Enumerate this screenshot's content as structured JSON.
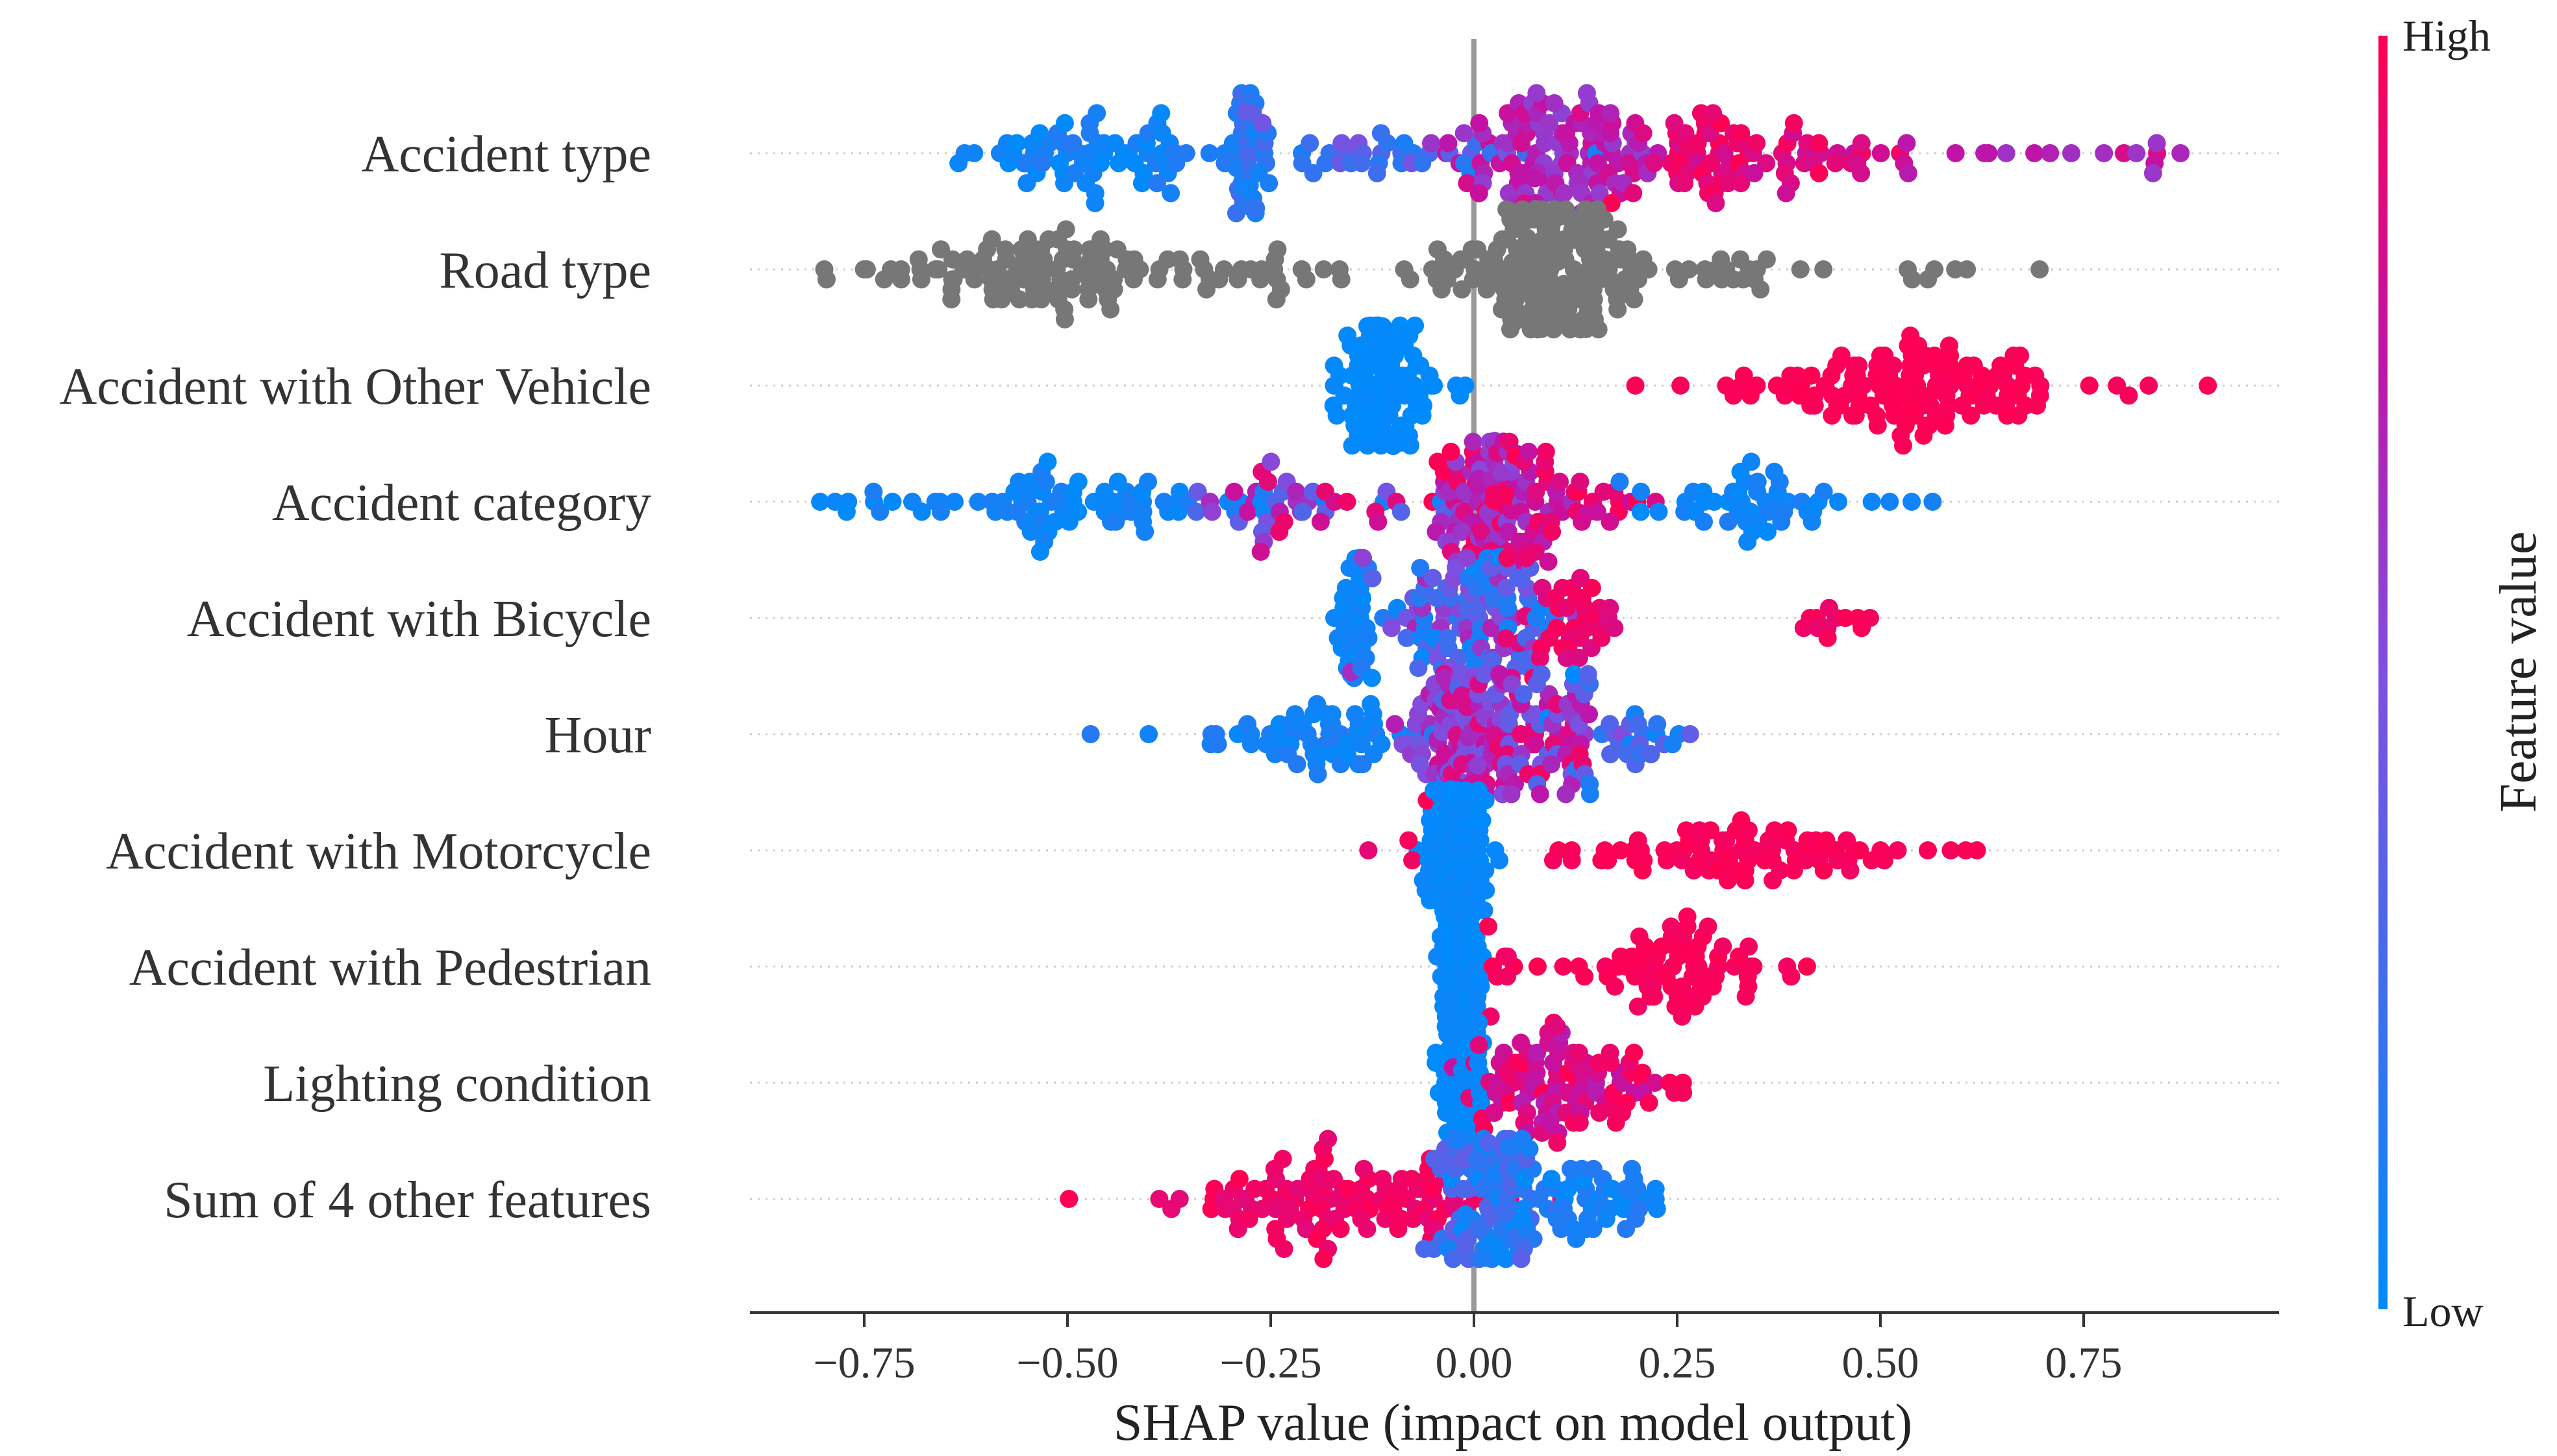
{
  "chart_data": {
    "type": "beeswarm",
    "xlabel": "SHAP value (impact on model output)",
    "xlim": [
      -0.9,
      1.0
    ],
    "xticks": [
      -0.75,
      -0.5,
      -0.25,
      0.0,
      0.25,
      0.5,
      0.75
    ],
    "xtick_labels": [
      "−0.75",
      "−0.50",
      "−0.25",
      "0.00",
      "0.25",
      "0.50",
      "0.75"
    ],
    "colorbar": {
      "title": "Feature value",
      "high_label": "High",
      "low_label": "Low",
      "low_color": "#008bfb",
      "high_color": "#ff0052"
    },
    "neutral_color": "#777777",
    "features": [
      {
        "name": "Accident type",
        "seed": 11,
        "spread": 0.55,
        "clusters": [
          {
            "x": -0.45,
            "sd": 0.08,
            "n": 70,
            "fv": [
              0.0,
              0.15
            ]
          },
          {
            "x": -0.28,
            "sd": 0.012,
            "n": 45,
            "fv": [
              0.05,
              0.3
            ]
          },
          {
            "x": -0.1,
            "sd": 0.08,
            "n": 40,
            "fv": [
              0.1,
              0.5
            ]
          },
          {
            "x": 0.1,
            "sd": 0.06,
            "n": 110,
            "fv": [
              0.55,
              0.85
            ]
          },
          {
            "x": 0.3,
            "sd": 0.05,
            "n": 60,
            "fv": [
              0.8,
              1.0
            ]
          },
          {
            "x": 0.45,
            "sd": 0.06,
            "n": 20,
            "fv": [
              0.75,
              1.0
            ]
          },
          {
            "x": 0.62,
            "sd": 0.06,
            "n": 8,
            "fv": [
              0.6,
              0.75
            ]
          },
          {
            "x": 0.82,
            "sd": 0.04,
            "n": 8,
            "fv": [
              0.6,
              0.9
            ]
          }
        ]
      },
      {
        "name": "Road type",
        "seed": 23,
        "spread": 0.55,
        "neutral": true,
        "clusters": [
          {
            "x": -0.55,
            "sd": 0.11,
            "n": 100
          },
          {
            "x": -0.25,
            "sd": 0.06,
            "n": 20
          },
          {
            "x": -0.8,
            "sd": 0.01,
            "n": 2
          },
          {
            "x": 0.0,
            "sd": 0.04,
            "n": 20
          },
          {
            "x": 0.1,
            "sd": 0.045,
            "n": 170
          },
          {
            "x": 0.3,
            "sd": 0.06,
            "n": 20
          },
          {
            "x": 0.55,
            "sd": 0.03,
            "n": 6
          },
          {
            "x": 0.69,
            "sd": 0.005,
            "n": 1
          }
        ]
      },
      {
        "name": "Accident with Other Vehicle",
        "seed": 37,
        "spread": 0.55,
        "clusters": [
          {
            "x": -0.11,
            "sd": 0.032,
            "n": 110,
            "fv": [
              0.0,
              0.03
            ]
          },
          {
            "x": 0.55,
            "sd": 0.12,
            "n": 130,
            "fv": [
              0.97,
              1.0
            ]
          },
          {
            "x": 0.9,
            "sd": 0.005,
            "n": 1,
            "fv": [
              1.0,
              1.0
            ]
          }
        ]
      },
      {
        "name": "Accident category",
        "seed": 41,
        "spread": 0.55,
        "clusters": [
          {
            "x": -0.5,
            "sd": 0.14,
            "n": 80,
            "fv": [
              0.0,
              0.12
            ]
          },
          {
            "x": -0.2,
            "sd": 0.07,
            "n": 40,
            "fv": [
              0.3,
              0.95
            ]
          },
          {
            "x": 0.02,
            "sd": 0.035,
            "n": 110,
            "fv": [
              0.5,
              1.0
            ]
          },
          {
            "x": 0.12,
            "sd": 0.05,
            "n": 40,
            "fv": [
              0.7,
              1.0
            ]
          },
          {
            "x": 0.33,
            "sd": 0.08,
            "n": 50,
            "fv": [
              0.0,
              0.12
            ]
          },
          {
            "x": -0.79,
            "sd": 0.01,
            "n": 2,
            "fv": [
              0.0,
              0.05
            ]
          }
        ]
      },
      {
        "name": "Accident with Bicycle",
        "seed": 53,
        "spread": 0.55,
        "clusters": [
          {
            "x": -0.15,
            "sd": 0.01,
            "n": 40,
            "fv": [
              0.0,
              0.1
            ]
          },
          {
            "x": -0.05,
            "sd": 0.06,
            "n": 60,
            "fv": [
              0.0,
              0.7
            ]
          },
          {
            "x": 0.02,
            "sd": 0.04,
            "n": 60,
            "fv": [
              0.0,
              0.6
            ]
          },
          {
            "x": 0.1,
            "sd": 0.04,
            "n": 40,
            "fv": [
              0.85,
              1.0
            ]
          },
          {
            "x": 0.45,
            "sd": 0.03,
            "n": 12,
            "fv": [
              0.9,
              1.0
            ]
          }
        ]
      },
      {
        "name": "Hour",
        "seed": 61,
        "spread": 0.55,
        "clusters": [
          {
            "x": -0.2,
            "sd": 0.08,
            "n": 60,
            "fv": [
              0.0,
              0.15
            ]
          },
          {
            "x": -0.02,
            "sd": 0.03,
            "n": 110,
            "fv": [
              0.4,
              0.9
            ]
          },
          {
            "x": 0.06,
            "sd": 0.05,
            "n": 80,
            "fv": [
              0.3,
              0.95
            ]
          },
          {
            "x": 0.18,
            "sd": 0.05,
            "n": 30,
            "fv": [
              0.0,
              0.4
            ]
          }
        ]
      },
      {
        "name": "Accident with Motorcycle",
        "seed": 71,
        "spread": 0.55,
        "clusters": [
          {
            "x": -0.02,
            "sd": 0.02,
            "n": 140,
            "fv": [
              0.0,
              0.05
            ]
          },
          {
            "x": 0.35,
            "sd": 0.12,
            "n": 80,
            "fv": [
              0.95,
              1.0
            ]
          },
          {
            "x": -0.08,
            "sd": 0.02,
            "n": 4,
            "fv": [
              0.9,
              1.0
            ]
          },
          {
            "x": 0.6,
            "sd": 0.005,
            "n": 1,
            "fv": [
              1.0,
              1.0
            ]
          }
        ]
      },
      {
        "name": "Accident with Pedestrian",
        "seed": 83,
        "spread": 0.55,
        "clusters": [
          {
            "x": -0.015,
            "sd": 0.012,
            "n": 120,
            "fv": [
              0.0,
              0.05
            ]
          },
          {
            "x": 0.04,
            "sd": 0.015,
            "n": 8,
            "fv": [
              0.9,
              1.0
            ]
          },
          {
            "x": 0.25,
            "sd": 0.06,
            "n": 70,
            "fv": [
              0.95,
              1.0
            ]
          },
          {
            "x": 0.41,
            "sd": 0.005,
            "n": 1,
            "fv": [
              1.0,
              1.0
            ]
          }
        ]
      },
      {
        "name": "Lighting condition",
        "seed": 97,
        "spread": 0.55,
        "clusters": [
          {
            "x": -0.015,
            "sd": 0.014,
            "n": 120,
            "fv": [
              0.0,
              0.05
            ]
          },
          {
            "x": 0.1,
            "sd": 0.05,
            "n": 80,
            "fv": [
              0.7,
              1.0
            ]
          },
          {
            "x": 0.2,
            "sd": 0.03,
            "n": 20,
            "fv": [
              0.9,
              1.0
            ]
          }
        ]
      },
      {
        "name": "Sum of 4 other features",
        "seed": 101,
        "spread": 0.55,
        "clusters": [
          {
            "x": -0.15,
            "sd": 0.1,
            "n": 110,
            "fv": [
              0.88,
              1.0
            ]
          },
          {
            "x": 0.02,
            "sd": 0.03,
            "n": 110,
            "fv": [
              0.0,
              0.4
            ]
          },
          {
            "x": 0.15,
            "sd": 0.06,
            "n": 50,
            "fv": [
              0.0,
              0.15
            ]
          },
          {
            "x": -0.5,
            "sd": 0.005,
            "n": 1,
            "fv": [
              1.0,
              1.0
            ]
          }
        ]
      }
    ]
  }
}
